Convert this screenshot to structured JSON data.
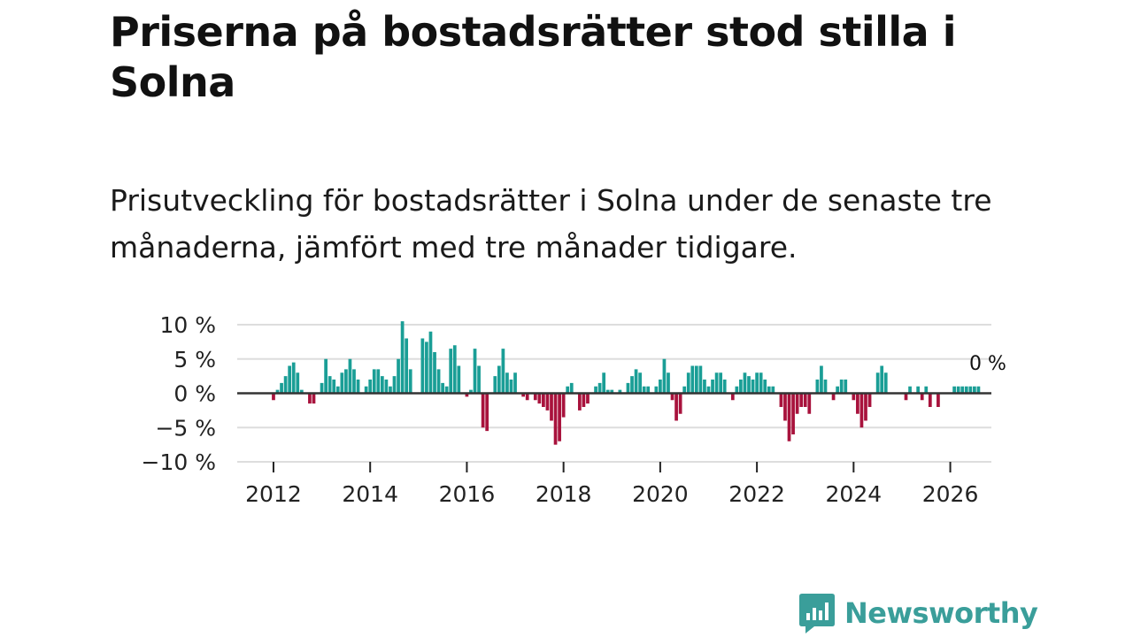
{
  "title": "Priserna på bostadsrätter stod stilla i Solna",
  "subtitle": "Prisutveckling för bostadsrätter i Solna under de senaste tre månaderna, jämfört med tre månader tidigare.",
  "brand": {
    "name": "Newsworthy"
  },
  "colors": {
    "positive": "#1a9e96",
    "negative": "#a8123c",
    "grid": "#dddddd",
    "zero_line": "#333333",
    "brand": "#3a9e9a"
  },
  "chart_data": {
    "type": "bar",
    "title": "Priserna på bostadsrätter stod stilla i Solna",
    "ylabel": "",
    "xlabel": "",
    "ylim": [
      -10,
      10
    ],
    "y_ticks": [
      10,
      5,
      0,
      -5,
      -10
    ],
    "y_tick_labels": [
      "10 %",
      "5 %",
      "0 %",
      "−5 %",
      "−10 %"
    ],
    "x_range": [
      2011.25,
      2026.85
    ],
    "x_ticks": [
      2012,
      2014,
      2016,
      2018,
      2020,
      2022,
      2024,
      2026
    ],
    "x_tick_labels": [
      "2012",
      "2014",
      "2016",
      "2018",
      "2020",
      "2022",
      "2024",
      "2026"
    ],
    "start": 2012.0,
    "step_months": 1,
    "end_label": "0 %",
    "values": [
      -1,
      0.5,
      1.5,
      2.5,
      4,
      4.5,
      3,
      0.5,
      0,
      -1.5,
      -1.5,
      0,
      1.5,
      5,
      2.5,
      2,
      1,
      3,
      3.5,
      5,
      3.5,
      2,
      0,
      1,
      2,
      3.5,
      3.5,
      2.5,
      2,
      1,
      2.5,
      5,
      10.5,
      8,
      3.5,
      0,
      0,
      8,
      7.5,
      9,
      6,
      3.5,
      1.5,
      1,
      6.5,
      7,
      4,
      0,
      -0.5,
      0.5,
      6.5,
      4,
      -5,
      -5.5,
      0,
      2.5,
      4,
      6.5,
      3,
      2,
      3,
      0,
      -0.5,
      -1,
      0,
      -1,
      -1.5,
      -2,
      -2.5,
      -4,
      -7.5,
      -7,
      -3.5,
      1,
      1.5,
      0,
      -2.5,
      -2,
      -1.5,
      0,
      1,
      1.5,
      3,
      0.5,
      0.5,
      0,
      0.5,
      0,
      1.5,
      2.5,
      3.5,
      3,
      1,
      1,
      0,
      1,
      2,
      5,
      3,
      -1,
      -4,
      -3,
      1,
      3,
      4,
      4,
      4,
      2,
      1,
      2,
      3,
      3,
      2,
      0,
      -1,
      1,
      2,
      3,
      2.5,
      2,
      3,
      3,
      2,
      1,
      1,
      0,
      -2,
      -4,
      -7,
      -6,
      -3,
      -2,
      -2,
      -3,
      0,
      2,
      4,
      2,
      0,
      -1,
      1,
      2,
      2,
      0,
      -1,
      -3,
      -5,
      -4,
      -2,
      0,
      3,
      4,
      3,
      0,
      0,
      0,
      0,
      -1,
      1,
      0,
      1,
      -1,
      1,
      -2,
      0,
      -2,
      0,
      0,
      0,
      1,
      1,
      1,
      1,
      1,
      1,
      1,
      0
    ]
  }
}
